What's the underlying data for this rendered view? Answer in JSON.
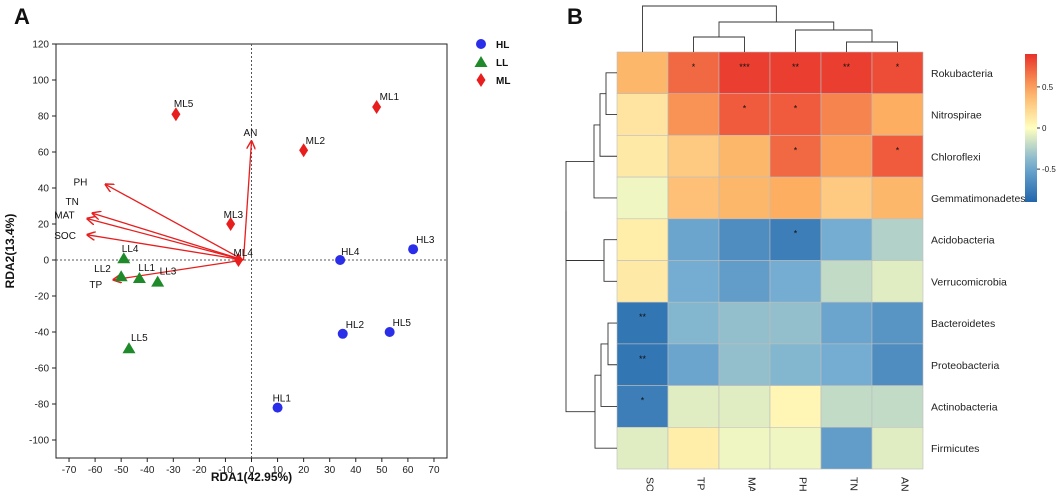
{
  "panels": [
    {
      "letter": "A"
    },
    {
      "letter": "B"
    }
  ],
  "chart_data": [
    {
      "type": "scatter",
      "title": "",
      "xlabel": "RDA1(42.95%)",
      "ylabel": "RDA2(13.4%)",
      "xlim": [
        -75,
        75
      ],
      "ylim": [
        -110,
        120
      ],
      "xticks": [
        -70,
        -60,
        -50,
        -40,
        -30,
        -20,
        -10,
        0,
        10,
        20,
        30,
        40,
        50,
        60,
        70
      ],
      "yticks": [
        -100,
        -80,
        -60,
        -40,
        -20,
        0,
        20,
        40,
        60,
        80,
        100,
        120
      ],
      "reference_lines": {
        "x": 0,
        "y": 0,
        "style": "dotted"
      },
      "legend": [
        {
          "name": "HL",
          "marker": "circle",
          "color": "#2a2ee8"
        },
        {
          "name": "LL",
          "marker": "triangle",
          "color": "#1f8a2a"
        },
        {
          "name": "ML",
          "marker": "diamond",
          "color": "#e81e1e"
        }
      ],
      "series": [
        {
          "name": "HL",
          "marker": "circle",
          "color": "#2a2ee8",
          "points": [
            {
              "label": "HL1",
              "x": 10,
              "y": -82
            },
            {
              "label": "HL2",
              "x": 35,
              "y": -41
            },
            {
              "label": "HL3",
              "x": 62,
              "y": 6
            },
            {
              "label": "HL4",
              "x": 34,
              "y": 0
            },
            {
              "label": "HL5",
              "x": 53,
              "y": -40
            }
          ]
        },
        {
          "name": "LL",
          "marker": "triangle",
          "color": "#1f8a2a",
          "points": [
            {
              "label": "LL1",
              "x": -43,
              "y": -10
            },
            {
              "label": "LL2",
              "x": -50,
              "y": -9
            },
            {
              "label": "LL3",
              "x": -36,
              "y": -12
            },
            {
              "label": "LL4",
              "x": -49,
              "y": 1
            },
            {
              "label": "LL5",
              "x": -47,
              "y": -49
            }
          ]
        },
        {
          "name": "ML",
          "marker": "diamond",
          "color": "#e81e1e",
          "points": [
            {
              "label": "ML1",
              "x": 48,
              "y": 85
            },
            {
              "label": "ML2",
              "x": 20,
              "y": 61
            },
            {
              "label": "ML3",
              "x": -8,
              "y": 20
            },
            {
              "label": "ML4",
              "x": -5,
              "y": 0
            },
            {
              "label": "ML5",
              "x": -29,
              "y": 81
            }
          ]
        }
      ],
      "arrows": [
        {
          "label": "AN",
          "x": 0,
          "y": 66
        },
        {
          "label": "PH",
          "x": -56,
          "y": 42
        },
        {
          "label": "TN",
          "x": -61,
          "y": 26
        },
        {
          "label": "MAT",
          "x": -63,
          "y": 23
        },
        {
          "label": "SOC",
          "x": -63,
          "y": 14
        },
        {
          "label": "TP",
          "x": -53,
          "y": -11
        }
      ],
      "arrow_origin": {
        "x": 0,
        "y": 0
      },
      "arrow_color": "#e81e1e"
    },
    {
      "type": "heatmap",
      "title": "",
      "rows": [
        "Rokubacteria",
        "Nitrospirae",
        "Chloroflexi",
        "Gemmatimonadetes",
        "Acidobacteria",
        "Verrucomicrobia",
        "Bacteroidetes",
        "Proteobacteria",
        "Actinobacteria",
        "Firmicutes"
      ],
      "columns": [
        "SOC",
        "TP",
        "MAT",
        "PH",
        "TN",
        "AN"
      ],
      "values": [
        [
          0.4,
          0.7,
          0.85,
          0.85,
          0.85,
          0.8
        ],
        [
          0.15,
          0.55,
          0.75,
          0.75,
          0.6,
          0.45
        ],
        [
          0.12,
          0.3,
          0.4,
          0.7,
          0.5,
          0.75
        ],
        [
          -0.05,
          0.35,
          0.4,
          0.45,
          0.3,
          0.4
        ],
        [
          0.1,
          -0.5,
          -0.65,
          -0.75,
          -0.45,
          -0.25
        ],
        [
          0.12,
          -0.45,
          -0.55,
          -0.45,
          -0.2,
          -0.1
        ],
        [
          -0.8,
          -0.4,
          -0.35,
          -0.35,
          -0.5,
          -0.6
        ],
        [
          -0.8,
          -0.5,
          -0.35,
          -0.4,
          -0.45,
          -0.65
        ],
        [
          -0.75,
          -0.1,
          -0.1,
          0.05,
          -0.2,
          -0.2
        ],
        [
          -0.1,
          0.1,
          -0.05,
          -0.05,
          -0.55,
          -0.1
        ]
      ],
      "significance": [
        [
          "",
          "*",
          "***",
          "**",
          "**",
          "*"
        ],
        [
          "",
          "",
          "*",
          "*",
          "",
          ""
        ],
        [
          "",
          "",
          "",
          "*",
          "",
          "*"
        ],
        [
          "",
          "",
          "",
          "",
          "",
          ""
        ],
        [
          "",
          "",
          "",
          "*",
          "",
          ""
        ],
        [
          "",
          "",
          "",
          "",
          "",
          ""
        ],
        [
          "**",
          "",
          "",
          "",
          "",
          ""
        ],
        [
          "**",
          "",
          "",
          "",
          "",
          ""
        ],
        [
          "*",
          "",
          "",
          "",
          "",
          ""
        ],
        [
          "",
          "",
          "",
          "",
          "",
          ""
        ]
      ],
      "colorbar": {
        "min": -0.9,
        "max": 0.9,
        "ticks": [
          0.5,
          0,
          -0.5
        ],
        "low_color": "#2166ac",
        "mid_color": "#ffffbf",
        "high_color": "#e8312a"
      },
      "dendrograms": [
        "columns-top",
        "rows-left"
      ]
    }
  ]
}
